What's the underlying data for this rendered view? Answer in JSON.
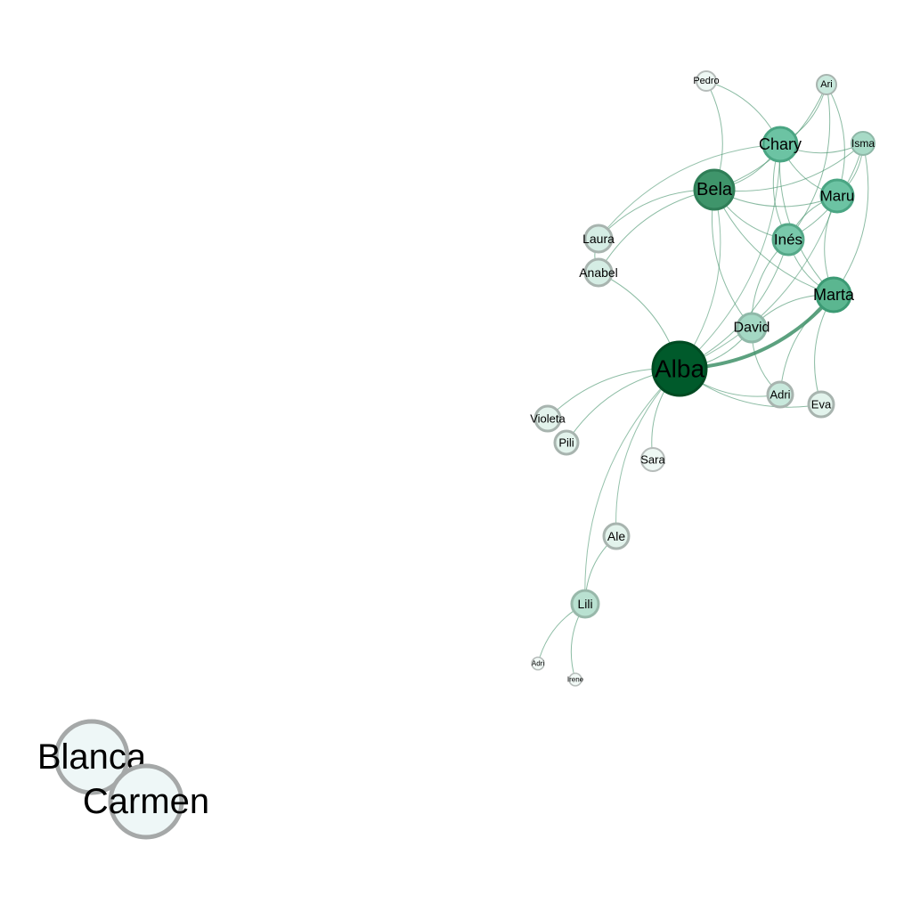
{
  "colors": {
    "background": "#ffffff",
    "edge": "#3f9068",
    "node_stroke_gray": "#9ea3a1"
  },
  "nodes": [
    {
      "id": "alba",
      "label": "Alba",
      "fill": "#005a2b",
      "stroke": "#004a22"
    },
    {
      "id": "bela",
      "label": "Bela",
      "fill": "#3f956b",
      "stroke": "#2f7e57"
    },
    {
      "id": "chary",
      "label": "Chary",
      "fill": "#6cc3a3",
      "stroke": "#4aa583"
    },
    {
      "id": "maru",
      "label": "Maru",
      "fill": "#6cc3a3",
      "stroke": "#4aa583"
    },
    {
      "id": "ines",
      "label": "Inés",
      "fill": "#79c8ab",
      "stroke": "#55a888"
    },
    {
      "id": "marta",
      "label": "Marta",
      "fill": "#5bb690",
      "stroke": "#3c9a74"
    },
    {
      "id": "david",
      "label": "David",
      "fill": "#a4d8c4",
      "stroke": "#8fb8a8"
    },
    {
      "id": "laura",
      "label": "Laura",
      "fill": "#d5ede4",
      "stroke": "#a8b4af"
    },
    {
      "id": "anabel",
      "label": "Anabel",
      "fill": "#d5ede4",
      "stroke": "#a8b4af"
    },
    {
      "id": "pedro",
      "label": "Pedro",
      "fill": "#eef8f4",
      "stroke": "#b6bcba"
    },
    {
      "id": "ari",
      "label": "Ari",
      "fill": "#c8e8dc",
      "stroke": "#a8b4af"
    },
    {
      "id": "isma",
      "label": "Isma",
      "fill": "#a7dac6",
      "stroke": "#8fb8a8"
    },
    {
      "id": "adri1",
      "label": "Adri",
      "fill": "#c8e8dc",
      "stroke": "#a8b4af"
    },
    {
      "id": "eva",
      "label": "Eva",
      "fill": "#e2f3ec",
      "stroke": "#a8b4af"
    },
    {
      "id": "violeta",
      "label": "Violeta",
      "fill": "#e2f3ec",
      "stroke": "#a8b4af"
    },
    {
      "id": "pili",
      "label": "Pili",
      "fill": "#e2f3ec",
      "stroke": "#a8b4af"
    },
    {
      "id": "sara",
      "label": "Sara",
      "fill": "#eef8f4",
      "stroke": "#b6bcba"
    },
    {
      "id": "ale",
      "label": "Ale",
      "fill": "#e2f3ec",
      "stroke": "#a8b4af"
    },
    {
      "id": "lili",
      "label": "Lili",
      "fill": "#b9e1d1",
      "stroke": "#98b8aa"
    },
    {
      "id": "adri2",
      "label": "Adri",
      "fill": "#f2faf7",
      "stroke": "#b6bcba"
    },
    {
      "id": "irene",
      "label": "Irene",
      "fill": "#f2faf7",
      "stroke": "#b6bcba"
    },
    {
      "id": "blanca",
      "label": "Blanca",
      "fill": "#eef7f7",
      "stroke": "#a5a8a8"
    },
    {
      "id": "carmen",
      "label": "Carmen",
      "fill": "#eef7f7",
      "stroke": "#a5a8a8"
    }
  ],
  "edges": [
    {
      "source": "alba",
      "target": "bela",
      "weight": 1
    },
    {
      "source": "alba",
      "target": "chary",
      "weight": 1
    },
    {
      "source": "alba",
      "target": "maru",
      "weight": 1
    },
    {
      "source": "alba",
      "target": "ines",
      "weight": 1
    },
    {
      "source": "alba",
      "target": "marta",
      "weight": 3
    },
    {
      "source": "alba",
      "target": "david",
      "weight": 1
    },
    {
      "source": "alba",
      "target": "anabel",
      "weight": 1
    },
    {
      "source": "alba",
      "target": "adri1",
      "weight": 1
    },
    {
      "source": "alba",
      "target": "eva",
      "weight": 1
    },
    {
      "source": "alba",
      "target": "violeta",
      "weight": 1
    },
    {
      "source": "alba",
      "target": "pili",
      "weight": 1
    },
    {
      "source": "alba",
      "target": "sara",
      "weight": 1
    },
    {
      "source": "alba",
      "target": "ale",
      "weight": 1
    },
    {
      "source": "alba",
      "target": "lili",
      "weight": 1
    },
    {
      "source": "bela",
      "target": "chary",
      "weight": 1
    },
    {
      "source": "bela",
      "target": "maru",
      "weight": 1
    },
    {
      "source": "bela",
      "target": "ines",
      "weight": 1
    },
    {
      "source": "bela",
      "target": "marta",
      "weight": 1
    },
    {
      "source": "bela",
      "target": "laura",
      "weight": 1
    },
    {
      "source": "bela",
      "target": "anabel",
      "weight": 1
    },
    {
      "source": "bela",
      "target": "pedro",
      "weight": 1
    },
    {
      "source": "bela",
      "target": "ari",
      "weight": 1
    },
    {
      "source": "bela",
      "target": "isma",
      "weight": 1
    },
    {
      "source": "bela",
      "target": "david",
      "weight": 1
    },
    {
      "source": "chary",
      "target": "maru",
      "weight": 1
    },
    {
      "source": "chary",
      "target": "ines",
      "weight": 1
    },
    {
      "source": "chary",
      "target": "marta",
      "weight": 1
    },
    {
      "source": "chary",
      "target": "ari",
      "weight": 1
    },
    {
      "source": "chary",
      "target": "isma",
      "weight": 1
    },
    {
      "source": "chary",
      "target": "pedro",
      "weight": 1
    },
    {
      "source": "chary",
      "target": "laura",
      "weight": 1
    },
    {
      "source": "maru",
      "target": "ines",
      "weight": 1
    },
    {
      "source": "maru",
      "target": "marta",
      "weight": 1
    },
    {
      "source": "maru",
      "target": "isma",
      "weight": 1
    },
    {
      "source": "maru",
      "target": "ari",
      "weight": 1
    },
    {
      "source": "ines",
      "target": "marta",
      "weight": 1
    },
    {
      "source": "ines",
      "target": "isma",
      "weight": 1
    },
    {
      "source": "ines",
      "target": "ari",
      "weight": 1
    },
    {
      "source": "ines",
      "target": "david",
      "weight": 1
    },
    {
      "source": "marta",
      "target": "isma",
      "weight": 1
    },
    {
      "source": "marta",
      "target": "adri1",
      "weight": 1
    },
    {
      "source": "marta",
      "target": "eva",
      "weight": 1
    },
    {
      "source": "marta",
      "target": "david",
      "weight": 1
    },
    {
      "source": "david",
      "target": "adri1",
      "weight": 1
    },
    {
      "source": "laura",
      "target": "anabel",
      "weight": 1
    },
    {
      "source": "ale",
      "target": "lili",
      "weight": 1
    },
    {
      "source": "lili",
      "target": "adri2",
      "weight": 1
    },
    {
      "source": "lili",
      "target": "irene",
      "weight": 1
    },
    {
      "source": "blanca",
      "target": "carmen",
      "weight": 1
    }
  ]
}
